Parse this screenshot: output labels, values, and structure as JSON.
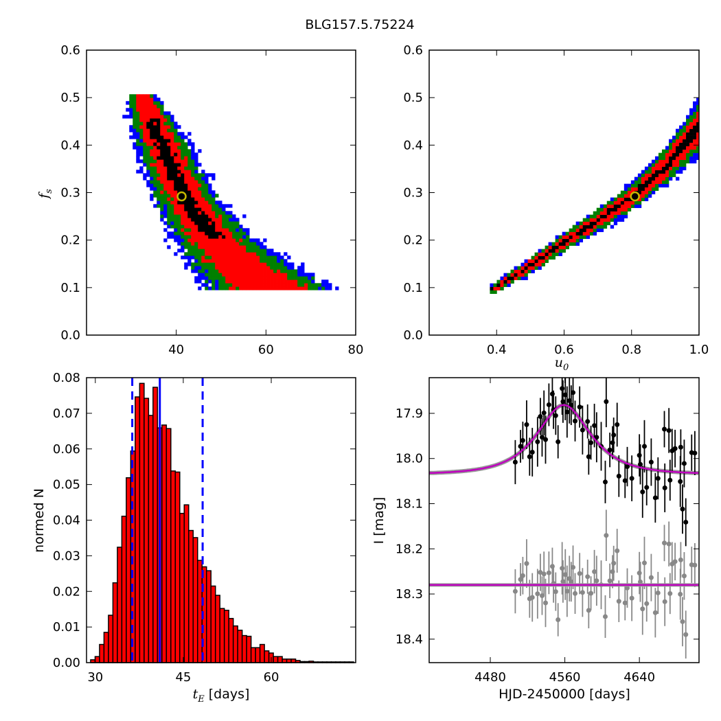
{
  "title": "BLG157.5.75224",
  "colors": {
    "black_level": "#000000",
    "red_level": "#ff0000",
    "green_level": "#007f00",
    "blue_level": "#0000ff",
    "best_fit_marker": "#c8b800",
    "hist_fill": "#ff0000",
    "hist_lines": "#0000ff",
    "model": "#bf00bf",
    "model_band": "#999999",
    "residuals": "#888888"
  },
  "chart_data": [
    {
      "id": "tE_vs_fs",
      "type": "heatmap",
      "title": "",
      "xlabel": "",
      "ylabel": {
        "main": "f",
        "sub": "s"
      },
      "xlim": [
        20,
        80
      ],
      "ylim": [
        0,
        0.6
      ],
      "xticks": [
        {
          "v": 40,
          "label": "40"
        },
        {
          "v": 60,
          "label": "60"
        },
        {
          "v": 80,
          "label": "80"
        }
      ],
      "yticks": [
        {
          "v": 0,
          "label": "0.0"
        },
        {
          "v": 0.1,
          "label": "0.1"
        },
        {
          "v": 0.2,
          "label": "0.2"
        },
        {
          "v": 0.3,
          "label": "0.3"
        },
        {
          "v": 0.4,
          "label": "0.4"
        },
        {
          "v": 0.5,
          "label": "0.5"
        },
        {
          "v": 0.6,
          "label": "0.6"
        }
      ],
      "levels": [
        "black",
        "red",
        "green",
        "blue"
      ],
      "band": {
        "by": "fs",
        "fs_range": [
          0.095,
          0.505
        ],
        "rows": [
          [
            0.1,
            60,
            14
          ],
          [
            0.15,
            53,
            11
          ],
          [
            0.2,
            48,
            9
          ],
          [
            0.25,
            44,
            8
          ],
          [
            0.3,
            41,
            7
          ],
          [
            0.35,
            38.5,
            6.5
          ],
          [
            0.4,
            36.5,
            6
          ],
          [
            0.45,
            34,
            5
          ],
          [
            0.5,
            32,
            3
          ]
        ]
      },
      "best_fit": {
        "x": 41.2,
        "y": 0.292
      }
    },
    {
      "id": "u0_vs_fs",
      "type": "heatmap",
      "xlabel": {
        "main": "u",
        "sub": "0"
      },
      "ylabel": "",
      "xlim": [
        0.2,
        1.0
      ],
      "ylim": [
        0,
        0.6
      ],
      "xticks": [
        {
          "v": 0.4,
          "label": "0.4"
        },
        {
          "v": 0.6,
          "label": "0.6"
        },
        {
          "v": 0.8,
          "label": "0.8"
        },
        {
          "v": 1.0,
          "label": "1.0"
        }
      ],
      "yticks": [
        {
          "v": 0,
          "label": "0.0"
        },
        {
          "v": 0.1,
          "label": "0.1"
        },
        {
          "v": 0.2,
          "label": "0.2"
        },
        {
          "v": 0.3,
          "label": "0.3"
        },
        {
          "v": 0.4,
          "label": "0.4"
        },
        {
          "v": 0.5,
          "label": "0.5"
        },
        {
          "v": 0.6,
          "label": "0.6"
        }
      ],
      "levels": [
        "black",
        "red",
        "green",
        "blue"
      ],
      "band": {
        "by": "u0",
        "u0_range": [
          0.38,
          1.0
        ],
        "rows": [
          [
            0.38,
            0.093,
            0.008
          ],
          [
            0.4,
            0.1,
            0.012
          ],
          [
            0.5,
            0.145,
            0.018
          ],
          [
            0.6,
            0.195,
            0.02
          ],
          [
            0.7,
            0.24,
            0.025
          ],
          [
            0.8,
            0.29,
            0.03
          ],
          [
            0.9,
            0.355,
            0.04
          ],
          [
            1.0,
            0.44,
            0.06
          ]
        ]
      },
      "best_fit": {
        "x": 0.81,
        "y": 0.292
      }
    },
    {
      "id": "tE_histogram",
      "type": "bar",
      "xlabel": {
        "main": "t",
        "sub": "E",
        "rest": " [days]"
      },
      "ylabel": "normed N",
      "xlim": [
        28.5,
        74.4
      ],
      "ylim": [
        0,
        0.08
      ],
      "xticks": [
        {
          "v": 30,
          "label": "30"
        },
        {
          "v": 45,
          "label": "45"
        },
        {
          "v": 60,
          "label": "60"
        }
      ],
      "yticks": [
        {
          "v": 0,
          "label": "0.00"
        },
        {
          "v": 0.01,
          "label": "0.01"
        },
        {
          "v": 0.02,
          "label": "0.02"
        },
        {
          "v": 0.03,
          "label": "0.03"
        },
        {
          "v": 0.04,
          "label": "0.04"
        },
        {
          "v": 0.05,
          "label": "0.05"
        },
        {
          "v": 0.06,
          "label": "0.06"
        },
        {
          "v": 0.07,
          "label": "0.07"
        },
        {
          "v": 0.08,
          "label": "0.08"
        }
      ],
      "bin_start": 29.2,
      "bin_width": 0.76,
      "values": [
        0.0008,
        0.0017,
        0.0051,
        0.0085,
        0.0133,
        0.0224,
        0.0324,
        0.0411,
        0.0519,
        0.0594,
        0.0746,
        0.0784,
        0.0742,
        0.0694,
        0.0773,
        0.0659,
        0.0667,
        0.0657,
        0.0538,
        0.0535,
        0.0419,
        0.0443,
        0.0371,
        0.0351,
        0.0287,
        0.0269,
        0.0258,
        0.0215,
        0.0189,
        0.0152,
        0.0147,
        0.0124,
        0.0103,
        0.0091,
        0.0076,
        0.0074,
        0.0042,
        0.0042,
        0.0051,
        0.0033,
        0.0027,
        0.0017,
        0.0017,
        0.001,
        0.001,
        0.001,
        0.0006,
        0.0003,
        0.0003,
        0.0004,
        0.0002,
        0.0002,
        0.0002,
        0.0002,
        0.0002,
        0.0002,
        0.0002,
        0.0002,
        0.0002
      ],
      "median": 41.0,
      "interval": [
        36.3,
        48.3
      ]
    },
    {
      "id": "light_curve",
      "type": "scatter",
      "xlabel": "HJD-2450000 [days]",
      "ylabel": "I [mag]",
      "xlim": [
        4414.4,
        4704
      ],
      "ylim": [
        18.452,
        17.821
      ],
      "y_inverted": true,
      "xticks": [
        {
          "v": 4480,
          "label": "4480"
        },
        {
          "v": 4560,
          "label": "4560"
        },
        {
          "v": 4640,
          "label": "4640"
        }
      ],
      "yticks": [
        {
          "v": 17.9,
          "label": "17.9"
        },
        {
          "v": 18.0,
          "label": "18.0"
        },
        {
          "v": 18.1,
          "label": "18.1"
        },
        {
          "v": 18.2,
          "label": "18.2"
        },
        {
          "v": 18.3,
          "label": "18.3"
        },
        {
          "v": 18.4,
          "label": "18.4"
        }
      ],
      "model": {
        "t0": 4558.8,
        "tE": 41,
        "u0": 0.81,
        "fs": 0.292,
        "I_base": 18.035
      },
      "residual_offset": 18.28,
      "error": 0.045,
      "points": [
        [
          4506.8,
          18.008
        ],
        [
          4512.4,
          17.973
        ],
        [
          4514.9,
          17.96
        ],
        [
          4519.0,
          17.925
        ],
        [
          4522.2,
          17.996
        ],
        [
          4525.1,
          17.986
        ],
        [
          4530.7,
          17.963
        ],
        [
          4533.7,
          17.907
        ],
        [
          4535.6,
          17.953
        ],
        [
          4537.6,
          17.899
        ],
        [
          4539.3,
          17.958
        ],
        [
          4542.9,
          17.881
        ],
        [
          4546.6,
          17.857
        ],
        [
          4547.8,
          17.892
        ],
        [
          4550.2,
          17.905
        ],
        [
          4552.7,
          17.963
        ],
        [
          4557.1,
          17.845
        ],
        [
          4558.0,
          17.874
        ],
        [
          4560.5,
          17.859
        ],
        [
          4562.4,
          17.897
        ],
        [
          4564.9,
          17.872
        ],
        [
          4566.8,
          17.882
        ],
        [
          4568.8,
          17.854
        ],
        [
          4571.0,
          17.917
        ],
        [
          4575.9,
          17.886
        ],
        [
          4579.0,
          17.937
        ],
        [
          4584.4,
          17.918
        ],
        [
          4585.6,
          17.996
        ],
        [
          4588.0,
          17.965
        ],
        [
          4591.7,
          17.927
        ],
        [
          4594.1,
          17.953
        ],
        [
          4599.0,
          17.973
        ],
        [
          4603.4,
          18.052
        ],
        [
          4604.4,
          17.874
        ],
        [
          4608.3,
          17.981
        ],
        [
          4611.2,
          17.965
        ],
        [
          4612.4,
          17.948
        ],
        [
          4616.1,
          17.925
        ],
        [
          4618.0,
          18.039
        ],
        [
          4624.6,
          18.049
        ],
        [
          4627.0,
          18.018
        ],
        [
          4631.9,
          18.044
        ],
        [
          4640.0,
          17.993
        ],
        [
          4641.0,
          18.013
        ],
        [
          4643.4,
          18.074
        ],
        [
          4645.4,
          17.973
        ],
        [
          4647.8,
          18.064
        ],
        [
          4652.7,
          18.008
        ],
        [
          4657.1,
          18.087
        ],
        [
          4660.0,
          18.044
        ],
        [
          4666.8,
          17.935
        ],
        [
          4667.3,
          18.065
        ],
        [
          4671.7,
          17.938
        ],
        [
          4672.9,
          18.048
        ],
        [
          4675.1,
          17.983
        ],
        [
          4678.3,
          17.978
        ],
        [
          4683.9,
          18.051
        ],
        [
          4684.4,
          17.975
        ],
        [
          4686.3,
          18.112
        ],
        [
          4688.1,
          18.011
        ],
        [
          4689.8,
          18.141
        ],
        [
          4696.1,
          17.987
        ],
        [
          4699.5,
          17.988
        ]
      ]
    }
  ]
}
